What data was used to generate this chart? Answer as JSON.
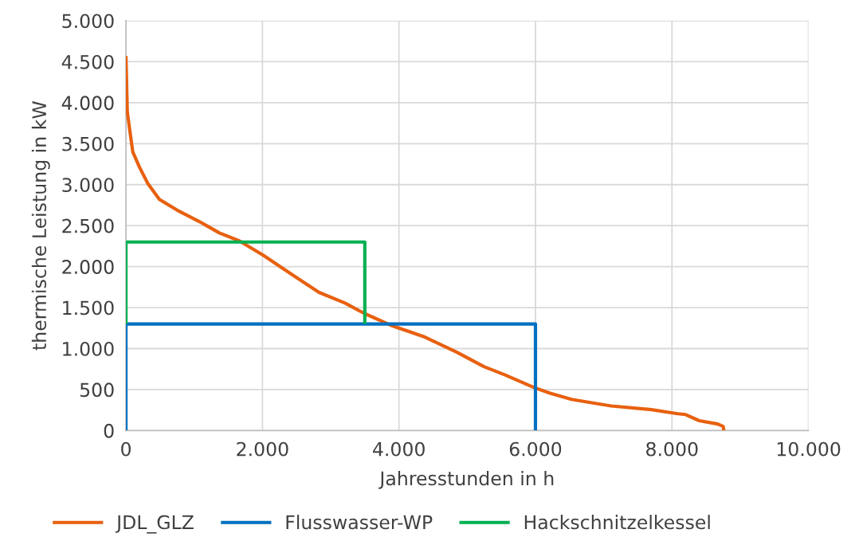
{
  "chart_data": {
    "type": "line",
    "xlabel": "Jahresstunden in h",
    "ylabel": "thermische Leistung in kW",
    "xlim": [
      0,
      10000
    ],
    "ylim": [
      0,
      5000
    ],
    "xticks": [
      {
        "value": 0,
        "label": "0"
      },
      {
        "value": 2000,
        "label": "2.000"
      },
      {
        "value": 4000,
        "label": "4.000"
      },
      {
        "value": 6000,
        "label": "6.000"
      },
      {
        "value": 8000,
        "label": "8.000"
      },
      {
        "value": 10000,
        "label": "10.000"
      }
    ],
    "yticks": [
      {
        "value": 0,
        "label": "0"
      },
      {
        "value": 500,
        "label": "500"
      },
      {
        "value": 1000,
        "label": "1.000"
      },
      {
        "value": 1500,
        "label": "1.500"
      },
      {
        "value": 2000,
        "label": "2.000"
      },
      {
        "value": 2500,
        "label": "2.500"
      },
      {
        "value": 3000,
        "label": "3.000"
      },
      {
        "value": 3500,
        "label": "3.500"
      },
      {
        "value": 4000,
        "label": "4.000"
      },
      {
        "value": 4500,
        "label": "4.500"
      },
      {
        "value": 5000,
        "label": "5.000"
      }
    ],
    "grid": true,
    "legend": "bottom",
    "marker": "none",
    "line_style": "solid",
    "series": [
      {
        "name": "JDL_GLZ",
        "color": "#e8600f",
        "x": [
          0,
          20,
          50,
          100,
          200,
          320,
          490,
          780,
          1075,
          1370,
          1660,
          2010,
          2475,
          2830,
          3210,
          3490,
          3880,
          4380,
          4850,
          5245,
          5550,
          5980,
          6215,
          6530,
          7110,
          7700,
          8085,
          8200,
          8400,
          8670,
          8750,
          8760
        ],
        "values": [
          4570,
          3890,
          3700,
          3400,
          3210,
          3015,
          2820,
          2675,
          2550,
          2410,
          2315,
          2140,
          1880,
          1685,
          1555,
          1430,
          1285,
          1140,
          955,
          780,
          680,
          525,
          455,
          380,
          300,
          255,
          205,
          195,
          120,
          80,
          50,
          0
        ]
      },
      {
        "name": "Flusswasser-WP",
        "color": "#0070c0",
        "x": [
          0,
          0,
          6000,
          6000
        ],
        "values": [
          0,
          1300,
          1300,
          0
        ]
      },
      {
        "name": "Hackschnitzelkessel",
        "color": "#00b050",
        "x": [
          0,
          0,
          3500,
          3500
        ],
        "values": [
          1300,
          2300,
          2300,
          1300
        ]
      }
    ]
  }
}
